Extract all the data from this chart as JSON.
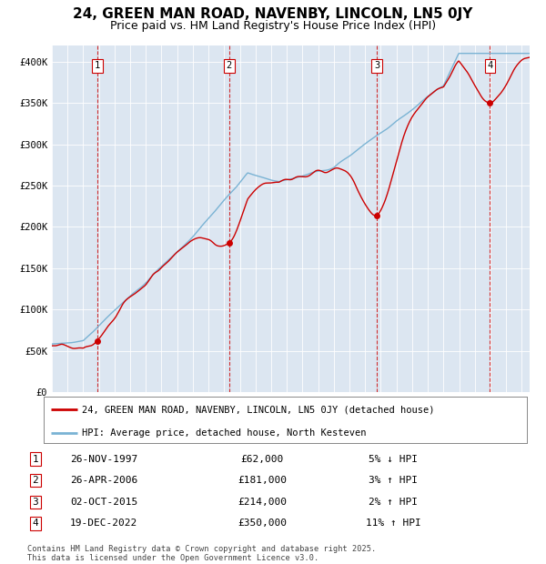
{
  "title": "24, GREEN MAN ROAD, NAVENBY, LINCOLN, LN5 0JY",
  "subtitle": "Price paid vs. HM Land Registry's House Price Index (HPI)",
  "title_fontsize": 11,
  "subtitle_fontsize": 9,
  "plot_bg_color": "#dce6f1",
  "ylim": [
    0,
    420000
  ],
  "yticks": [
    0,
    50000,
    100000,
    150000,
    200000,
    250000,
    300000,
    350000,
    400000
  ],
  "ytick_labels": [
    "£0",
    "£50K",
    "£100K",
    "£150K",
    "£200K",
    "£250K",
    "£300K",
    "£350K",
    "£400K"
  ],
  "hpi_color": "#7ab3d4",
  "price_color": "#cc0000",
  "marker_color": "#cc0000",
  "vline_color": "#cc0000",
  "grid_color": "#ffffff",
  "legend_label_price": "24, GREEN MAN ROAD, NAVENBY, LINCOLN, LN5 0JY (detached house)",
  "legend_label_hpi": "HPI: Average price, detached house, North Kesteven",
  "transactions": [
    {
      "num": 1,
      "date": "26-NOV-1997",
      "price": 62000,
      "pct": "5%",
      "dir": "↓",
      "year": 1997.9
    },
    {
      "num": 2,
      "date": "26-APR-2006",
      "price": 181000,
      "pct": "3%",
      "dir": "↑",
      "year": 2006.32
    },
    {
      "num": 3,
      "date": "02-OCT-2015",
      "price": 214000,
      "pct": "2%",
      "dir": "↑",
      "year": 2015.75
    },
    {
      "num": 4,
      "date": "19-DEC-2022",
      "price": 350000,
      "pct": "11%",
      "dir": "↑",
      "year": 2022.96
    }
  ],
  "footer_line1": "Contains HM Land Registry data © Crown copyright and database right 2025.",
  "footer_line2": "This data is licensed under the Open Government Licence v3.0.",
  "xstart": 1995.0,
  "xend": 2025.5
}
